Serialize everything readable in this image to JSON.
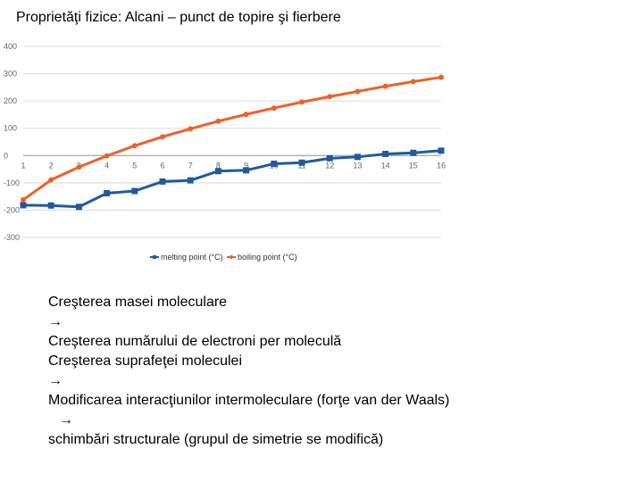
{
  "slide": {
    "title": "Proprietăţi fizice: Alcani – punct de topire şi fierbere",
    "lines": [
      "Creşterea masei moleculare",
      "",
      "Creşterea numărului de electroni per moleculă",
      "Creşterea suprafeţei moleculei",
      "",
      "Modificarea interacţiunilor intermoleculare (forţe van der Waals)",
      "",
      "schimbări structurale (grupul de simetrie se modifică)"
    ],
    "arrow_glyph": "→"
  },
  "chart_data": {
    "type": "line",
    "title": "",
    "xlabel": "",
    "ylabel": "",
    "x": [
      1,
      2,
      3,
      4,
      5,
      6,
      7,
      8,
      9,
      10,
      11,
      12,
      13,
      14,
      15,
      16
    ],
    "y_ticks": [
      400,
      300,
      200,
      100,
      0,
      -100,
      -200,
      -300
    ],
    "ylim": [
      -300,
      400
    ],
    "grid": true,
    "legend_position": "bottom",
    "series": [
      {
        "name": "melting point (°C)",
        "color": "#1f5b9c",
        "marker": "square",
        "values": [
          -182,
          -183,
          -188,
          -138,
          -130,
          -95,
          -91,
          -57,
          -54,
          -30,
          -26,
          -10,
          -5,
          6,
          10,
          18
        ]
      },
      {
        "name": "boiling point (°C)",
        "color": "#f0602a",
        "marker": "circle",
        "values": [
          -162,
          -89,
          -42,
          -1,
          36,
          69,
          98,
          126,
          151,
          174,
          196,
          216,
          235,
          254,
          271,
          287
        ]
      }
    ]
  }
}
